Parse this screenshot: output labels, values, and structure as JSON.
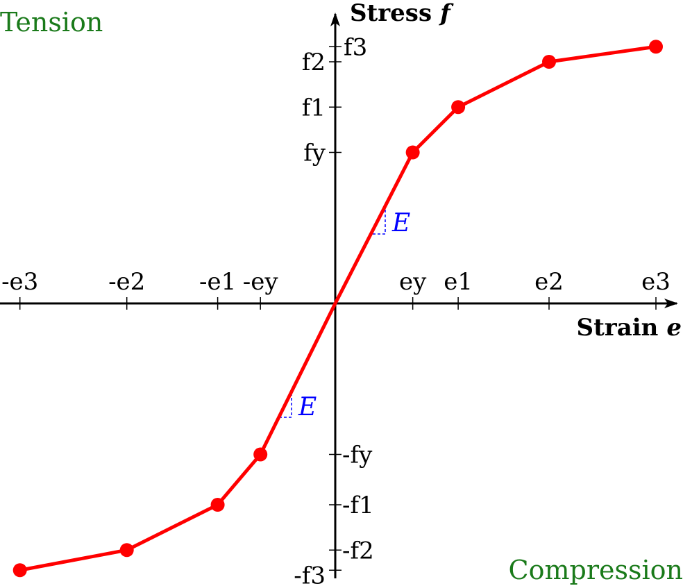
{
  "colors": {
    "curve": "#ff0000",
    "region_labels": "#1a7a1a",
    "slope": "#0000ff",
    "axes": "#000000"
  },
  "labels": {
    "tension": "Tension",
    "compression": "Compression",
    "x_axis_title": "Strain",
    "x_axis_symbol": "e",
    "y_axis_title": "Stress",
    "y_axis_symbol": "f",
    "slope": "E"
  },
  "x_ticks": [
    {
      "label": "-e3",
      "value": -5.9
    },
    {
      "label": "-e2",
      "value": -3.9
    },
    {
      "label": "-e1",
      "value": -2.2
    },
    {
      "label": "-ey",
      "value": -1.4
    },
    {
      "label": "ey",
      "value": 1.45
    },
    {
      "label": "e1",
      "value": 2.3
    },
    {
      "label": "e2",
      "value": 4.0
    },
    {
      "label": "e3",
      "value": 6.0
    }
  ],
  "y_ticks": [
    {
      "label": "f3",
      "value": 5.1
    },
    {
      "label": "f2",
      "value": 4.8
    },
    {
      "label": "f1",
      "value": 3.9
    },
    {
      "label": "fy",
      "value": 3.0
    },
    {
      "label": "-fy",
      "value": -3.0
    },
    {
      "label": "-f1",
      "value": -4.0
    },
    {
      "label": "-f2",
      "value": -4.9
    },
    {
      "label": "-f3",
      "value": -5.3
    }
  ],
  "curve_points": [
    {
      "x": -5.9,
      "y": -5.3
    },
    {
      "x": -3.9,
      "y": -4.9
    },
    {
      "x": -2.2,
      "y": -4.0
    },
    {
      "x": -1.4,
      "y": -3.0
    },
    {
      "x": 0,
      "y": 0
    },
    {
      "x": 1.45,
      "y": 3.0
    },
    {
      "x": 2.3,
      "y": 3.9
    },
    {
      "x": 4.0,
      "y": 4.8
    },
    {
      "x": 6.0,
      "y": 5.1
    }
  ],
  "markers": [
    {
      "x": -5.9,
      "y": -5.3
    },
    {
      "x": -3.9,
      "y": -4.9
    },
    {
      "x": -2.2,
      "y": -4.0
    },
    {
      "x": -1.4,
      "y": -3.0
    },
    {
      "x": 1.45,
      "y": 3.0
    },
    {
      "x": 2.3,
      "y": 3.9
    },
    {
      "x": 4.0,
      "y": 4.8
    },
    {
      "x": 6.0,
      "y": 5.1
    }
  ]
}
